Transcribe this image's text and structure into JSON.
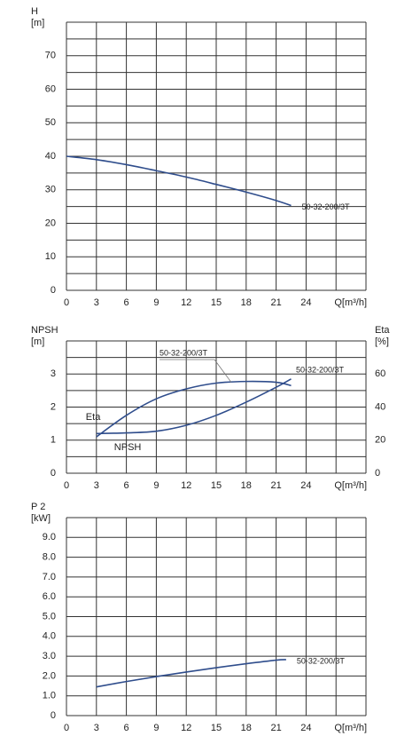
{
  "chart_data": [
    {
      "type": "line",
      "ylabel": "H",
      "yunit": "[m]",
      "xlabel": "Q[m³/h]",
      "xlim": [
        0,
        30
      ],
      "xticks": [
        0,
        3,
        6,
        9,
        12,
        15,
        18,
        21,
        24
      ],
      "ylim": [
        0,
        80
      ],
      "yticks": [
        0,
        10,
        20,
        30,
        40,
        50,
        60,
        70
      ],
      "grid": true,
      "minor_grid": true,
      "x": [
        0,
        3,
        6,
        9,
        12,
        15,
        18,
        21,
        22.5
      ],
      "series": [
        {
          "name": "50-32-200/3T",
          "color": "#2f4d8c",
          "values": [
            40,
            39,
            37.5,
            35.7,
            33.8,
            31.6,
            29.3,
            26.8,
            25.3
          ]
        }
      ]
    },
    {
      "type": "line",
      "ylabel": "NPSH",
      "yunit": "[m]",
      "y2label": "Eta",
      "y2unit": "[%]",
      "xlabel": "Q[m³/h]",
      "xlim": [
        0,
        30
      ],
      "xticks": [
        0,
        3,
        6,
        9,
        12,
        15,
        18,
        21,
        24
      ],
      "ylim": [
        0,
        4
      ],
      "yticks": [
        0,
        1,
        2,
        3
      ],
      "y2lim": [
        0,
        80
      ],
      "y2ticks": [
        0,
        20,
        40,
        60
      ],
      "grid": true,
      "minor_grid": true,
      "x": [
        3,
        6,
        9,
        12,
        15,
        18,
        21,
        22.5
      ],
      "series": [
        {
          "name": "Eta",
          "color": "#2f4d8c",
          "axis": "y2",
          "values": [
            22,
            35,
            45,
            51,
            54.5,
            55.5,
            55,
            53
          ]
        },
        {
          "name": "NPSH",
          "color": "#2f4d8c",
          "values": [
            1.2,
            1.22,
            1.27,
            1.45,
            1.75,
            2.15,
            2.6,
            2.85
          ]
        }
      ],
      "annotations": [
        "50-32-200/3T",
        "50-32-200/3T"
      ]
    },
    {
      "type": "line",
      "ylabel": "P 2",
      "yunit": "[kW]",
      "xlabel": "Q[m³/h]",
      "xlim": [
        0,
        30
      ],
      "xticks": [
        0,
        3,
        6,
        9,
        12,
        15,
        18,
        21,
        24
      ],
      "ylim": [
        0,
        10
      ],
      "yticks": [
        0,
        {
          "value": 1,
          "label": "1.0"
        },
        {
          "value": 2,
          "label": "2.0"
        },
        {
          "value": 3,
          "label": "3.0"
        },
        {
          "value": 4,
          "label": "4.0"
        },
        {
          "value": 5,
          "label": "5.0"
        },
        {
          "value": 6,
          "label": "6.0"
        },
        {
          "value": 7,
          "label": "7.0"
        },
        {
          "value": 8,
          "label": "8.0"
        },
        {
          "value": 9,
          "label": "9.0"
        }
      ],
      "grid": true,
      "minor_grid": false,
      "x": [
        3,
        6,
        9,
        12,
        15,
        18,
        21,
        22
      ],
      "series": [
        {
          "name": "50-32-200/3T",
          "color": "#2f4d8c",
          "values": [
            1.45,
            1.72,
            1.97,
            2.2,
            2.42,
            2.62,
            2.8,
            2.83
          ]
        }
      ]
    }
  ]
}
